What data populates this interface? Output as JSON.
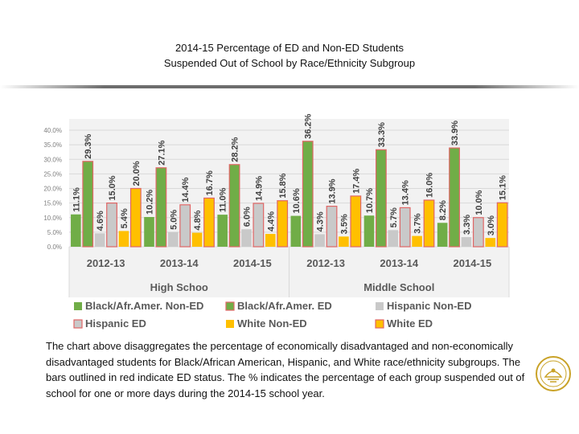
{
  "title": {
    "line1": "2014-15 Percentage of ED and Non-ED Students",
    "line2": "Suspended Out of School by Race/Ethnicity Subgroup"
  },
  "caption": "The chart above disaggregates the percentage of economically disadvantaged and non-economically disadvantaged students for Black/African American, Hispanic, and White race/ethnicity subgroups. The bars outlined in red indicate ED status. The % indicates the percentage of each group suspended out of school for one or more days during the 2014-15 school year.",
  "seal_icon": "district-seal-icon",
  "chart_data": {
    "type": "bar",
    "ylim": [
      0,
      40
    ],
    "yticks": [
      "0.0%",
      "5.0%",
      "10.0%",
      "15.0%",
      "20.0%",
      "25.0%",
      "30.0%",
      "35.0%",
      "40.0%"
    ],
    "grid": true,
    "legend_position": "bottom",
    "groups": [
      {
        "label": "High Schoo",
        "categories": [
          "2012-13",
          "2013-14",
          "2014-15"
        ]
      },
      {
        "label": "Middle School",
        "categories": [
          "2012-13",
          "2013-14",
          "2014-15"
        ]
      }
    ],
    "series": [
      {
        "name": "Black/Afr.Amer. Non-ED",
        "color": "#70AD47",
        "outline": "none",
        "values": [
          11.1,
          10.2,
          11.0,
          10.6,
          10.7,
          8.2
        ],
        "labels": [
          "11.1%",
          "10.2%",
          "11.0%",
          "10.6%",
          "10.7%",
          "8.2%"
        ]
      },
      {
        "name": "Black/Afr.Amer. ED",
        "color": "#70AD47",
        "outline": "#E06666",
        "values": [
          29.3,
          27.1,
          28.2,
          36.2,
          33.3,
          33.9
        ],
        "labels": [
          "29.3%",
          "27.1%",
          "28.2%",
          "36.2%",
          "33.3%",
          "33.9%"
        ]
      },
      {
        "name": "Hispanic Non-ED",
        "color": "#C9C9C9",
        "outline": "none",
        "values": [
          4.6,
          5.0,
          6.0,
          4.3,
          5.7,
          3.3
        ],
        "labels": [
          "4.6%",
          "5.0%",
          "6.0%",
          "4.3%",
          "5.7%",
          "3.3%"
        ]
      },
      {
        "name": "Hispanic ED",
        "color": "#C9C9C9",
        "outline": "#E06666",
        "values": [
          15.0,
          14.4,
          14.9,
          13.9,
          13.4,
          10.0
        ],
        "labels": [
          "15.0%",
          "14.4%",
          "14.9%",
          "13.9%",
          "13.4%",
          "10.0%"
        ]
      },
      {
        "name": "White Non-ED",
        "color": "#FFC000",
        "outline": "none",
        "values": [
          5.4,
          4.8,
          4.4,
          3.5,
          3.7,
          3.0
        ],
        "labels": [
          "5.4%",
          "4.8%",
          "4.4%",
          "3.5%",
          "3.7%",
          "3.0%"
        ]
      },
      {
        "name": "White ED",
        "color": "#FFC000",
        "outline": "#E06666",
        "values": [
          20.0,
          16.7,
          15.8,
          17.4,
          16.0,
          15.1
        ],
        "labels": [
          "20.0%",
          "16.7%",
          "15.8%",
          "17.4%",
          "16.0%",
          "15.1%"
        ]
      }
    ]
  }
}
